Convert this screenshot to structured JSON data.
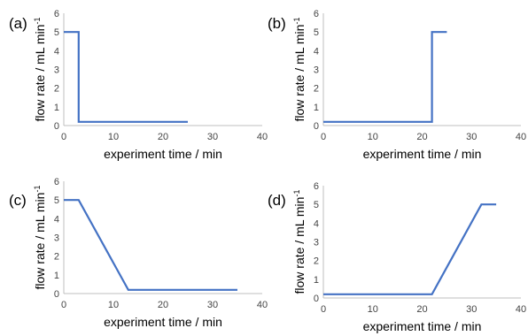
{
  "chart_data": [
    {
      "type": "line",
      "panel_label": "(a)",
      "xlabel": "experiment time / min",
      "ylabel": "flow rate / mL min",
      "ylabel_superscript": "-1",
      "xlim": [
        0,
        40
      ],
      "ylim": [
        0,
        6
      ],
      "x_ticks": [
        0,
        10,
        20,
        30,
        40
      ],
      "y_ticks": [
        0,
        1,
        2,
        3,
        4,
        5,
        6
      ],
      "grid": false,
      "line_color": "#4472c4",
      "x": [
        0,
        3,
        3,
        25
      ],
      "y": [
        5,
        5,
        0.2,
        0.2
      ]
    },
    {
      "type": "line",
      "panel_label": "(b)",
      "xlabel": "experiment time / min",
      "ylabel": "flow rate / mL min",
      "ylabel_superscript": "-1",
      "xlim": [
        0,
        40
      ],
      "ylim": [
        0,
        6
      ],
      "x_ticks": [
        0,
        10,
        20,
        30,
        40
      ],
      "y_ticks": [
        0,
        1,
        2,
        3,
        4,
        5,
        6
      ],
      "grid": false,
      "line_color": "#4472c4",
      "x": [
        0,
        22,
        22,
        25
      ],
      "y": [
        0.2,
        0.2,
        5,
        5
      ]
    },
    {
      "type": "line",
      "panel_label": "(c)",
      "xlabel": "experiment time / min",
      "ylabel": "flow rate / mL min",
      "ylabel_superscript": "-1",
      "xlim": [
        0,
        40
      ],
      "ylim": [
        0,
        6
      ],
      "x_ticks": [
        0,
        10,
        20,
        30,
        40
      ],
      "y_ticks": [
        0,
        1,
        2,
        3,
        4,
        5,
        6
      ],
      "grid": false,
      "line_color": "#4472c4",
      "x": [
        0,
        3,
        13,
        35
      ],
      "y": [
        5,
        5,
        0.2,
        0.2
      ]
    },
    {
      "type": "line",
      "panel_label": "(d)",
      "xlabel": "experiment time / min",
      "ylabel": "flow rate / mL min",
      "ylabel_superscript": "-1",
      "xlim": [
        0,
        40
      ],
      "ylim": [
        0,
        6
      ],
      "x_ticks": [
        0,
        10,
        20,
        30,
        40
      ],
      "y_ticks": [
        0,
        1,
        2,
        3,
        4,
        5,
        6
      ],
      "grid": false,
      "line_color": "#4472c4",
      "x": [
        0,
        22,
        32,
        35
      ],
      "y": [
        0.2,
        0.2,
        5,
        5
      ]
    }
  ]
}
